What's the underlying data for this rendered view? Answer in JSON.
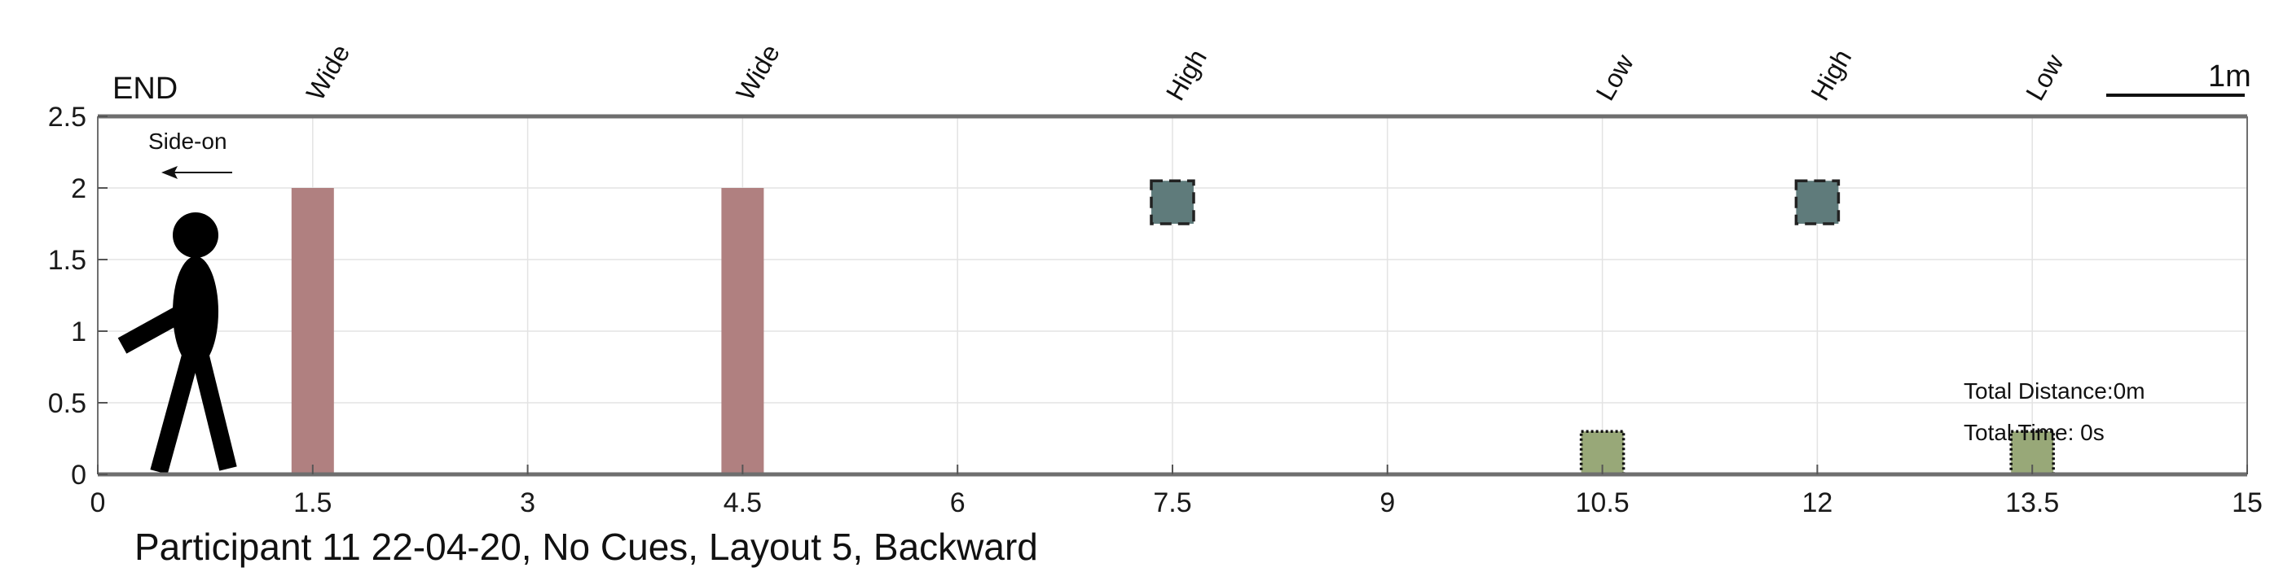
{
  "chart_data": {
    "type": "scatter",
    "title": "",
    "xlabel": "",
    "ylabel": "",
    "xlim": [
      0,
      15
    ],
    "ylim": [
      0,
      2.5
    ],
    "x_ticks": [
      "0",
      "1.5",
      "3",
      "4.5",
      "6",
      "7.5",
      "9",
      "10.5",
      "12",
      "13.5",
      "15"
    ],
    "y_ticks": [
      "0",
      "0.5",
      "1",
      "1.5",
      "2",
      "2.5"
    ],
    "grid": true,
    "end_label": "END",
    "direction_label": "Side-on",
    "scale_bar_label": "1m",
    "caption": "Participant 11 22-04-20, No Cues, Layout 5, Backward",
    "total_distance": "Total Distance:0m",
    "total_time": "Total Time: 0s",
    "obstacles": [
      {
        "label": "Wide",
        "x": 1.5,
        "y_bottom": 0,
        "y_top": 2,
        "kind": "wide",
        "color": "#b08080"
      },
      {
        "label": "Wide",
        "x": 4.5,
        "y_bottom": 0,
        "y_top": 2,
        "kind": "wide",
        "color": "#b08080"
      },
      {
        "label": "High",
        "x": 7.5,
        "y_bottom": 1.75,
        "y_top": 2.05,
        "kind": "high",
        "color": "#5f7b7b"
      },
      {
        "label": "Low",
        "x": 10.5,
        "y_bottom": 0,
        "y_top": 0.3,
        "kind": "low",
        "color": "#98a878"
      },
      {
        "label": "High",
        "x": 12,
        "y_bottom": 1.75,
        "y_top": 2.05,
        "kind": "high",
        "color": "#5f7b7b"
      },
      {
        "label": "Low",
        "x": 13.5,
        "y_bottom": 0,
        "y_top": 0.3,
        "kind": "low",
        "color": "#98a878"
      }
    ]
  }
}
